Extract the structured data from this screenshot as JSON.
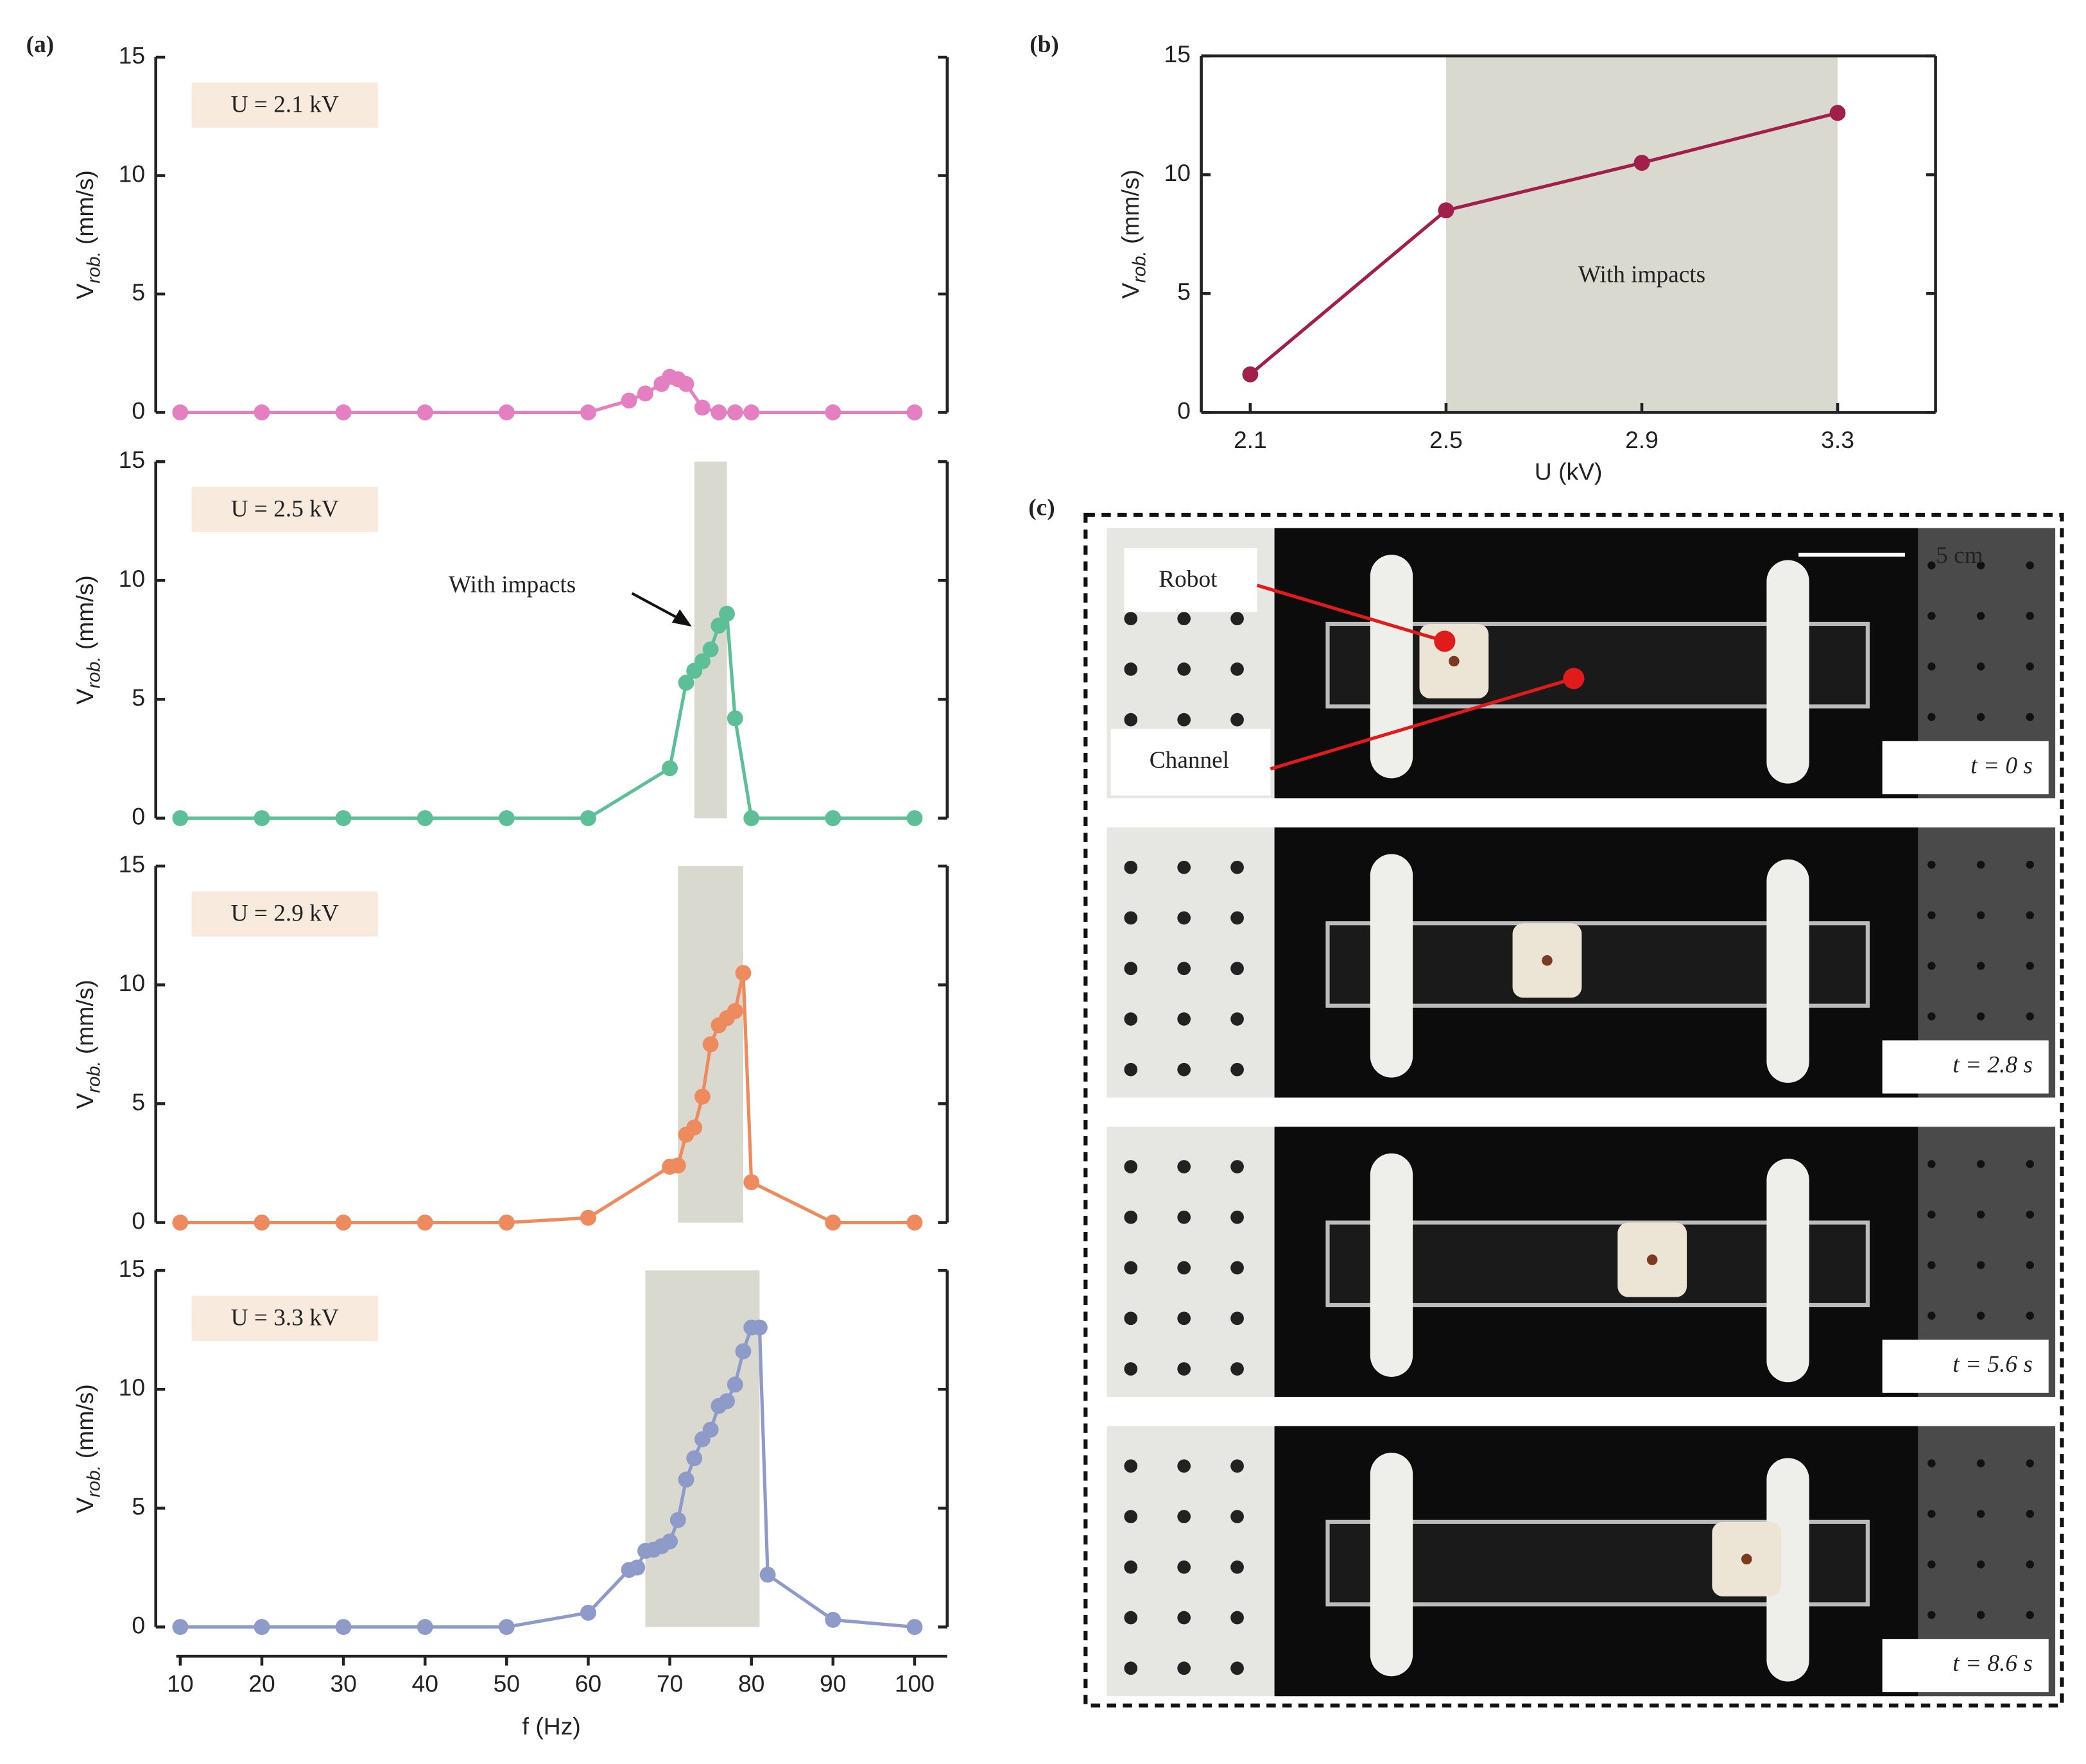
{
  "chart_data": [
    {
      "type": "line",
      "panel_label": "(a)",
      "annotation": "U = 2.1 kV",
      "ylabel": [
        "V",
        "rob.",
        "(mm/s)"
      ],
      "color": "#e47fc1",
      "x": [
        10,
        20,
        30,
        40,
        50,
        60,
        65,
        67,
        69,
        70,
        71,
        72,
        74,
        76,
        78,
        80,
        90,
        100
      ],
      "values": [
        0,
        0,
        0,
        0,
        0,
        0,
        0.5,
        0.8,
        1.2,
        1.5,
        1.4,
        1.2,
        0.2,
        0,
        0,
        0,
        0,
        0
      ],
      "xlim": [
        7,
        104
      ],
      "ylim": [
        0,
        15
      ],
      "yticks": [
        0,
        5,
        10,
        15
      ]
    },
    {
      "type": "line",
      "annotation": "U = 2.5 kV",
      "impact_label": "With impacts",
      "ylabel": [
        "V",
        "rob.",
        "(mm/s)"
      ],
      "color": "#5dbf98",
      "x": [
        10,
        20,
        30,
        40,
        50,
        60,
        70,
        72,
        73,
        74,
        75,
        76,
        77,
        78,
        80,
        90,
        100
      ],
      "values": [
        0,
        0,
        0,
        0,
        0,
        0,
        2.1,
        5.7,
        6.2,
        6.6,
        7.1,
        8.1,
        8.6,
        4.2,
        0,
        0,
        0
      ],
      "shaded_x": [
        73,
        77
      ],
      "xlim": [
        7,
        104
      ],
      "ylim": [
        0,
        15
      ],
      "yticks": [
        0,
        5,
        10,
        15
      ]
    },
    {
      "type": "line",
      "annotation": "U = 2.9 kV",
      "ylabel": [
        "V",
        "rob.",
        "(mm/s)"
      ],
      "color": "#ee8b5e",
      "x": [
        10,
        20,
        30,
        40,
        50,
        60,
        70,
        71,
        72,
        73,
        74,
        75,
        76,
        77,
        78,
        79,
        80,
        90,
        100
      ],
      "values": [
        0,
        0,
        0,
        0,
        0,
        0.2,
        2.35,
        2.4,
        3.7,
        4.0,
        5.3,
        7.5,
        8.3,
        8.6,
        8.9,
        10.5,
        1.7,
        0,
        0
      ],
      "shaded_x": [
        71,
        79
      ],
      "xlim": [
        7,
        104
      ],
      "ylim": [
        0,
        15
      ],
      "yticks": [
        0,
        5,
        10,
        15
      ]
    },
    {
      "type": "line",
      "annotation": "U = 3.3 kV",
      "ylabel": [
        "V",
        "rob.",
        "(mm/s)"
      ],
      "xlabel": "f (Hz)",
      "color": "#8e9bc8",
      "x": [
        10,
        20,
        30,
        40,
        50,
        60,
        65,
        66,
        67,
        68,
        69,
        70,
        71,
        72,
        73,
        74,
        75,
        76,
        77,
        78,
        79,
        80,
        81,
        82,
        90,
        100
      ],
      "values": [
        0,
        0,
        0,
        0,
        0,
        0.6,
        2.4,
        2.5,
        3.2,
        3.25,
        3.4,
        3.6,
        4.5,
        6.2,
        7.1,
        7.9,
        8.3,
        9.3,
        9.5,
        10.2,
        11.6,
        12.6,
        12.6,
        2.2,
        0.3,
        0
      ],
      "shaded_x": [
        67,
        81
      ],
      "xlim": [
        7,
        104
      ],
      "ylim": [
        0,
        15
      ],
      "yticks": [
        0,
        5,
        10,
        15
      ],
      "xticks": [
        10,
        20,
        30,
        40,
        50,
        60,
        70,
        80,
        90,
        100
      ]
    },
    {
      "type": "line",
      "panel_label": "(b)",
      "impact_label": "With impacts",
      "ylabel": [
        "V",
        "rob.",
        "(mm/s)"
      ],
      "xlabel": "U (kV)",
      "color": "#a01f4b",
      "x": [
        2.1,
        2.5,
        2.9,
        3.3
      ],
      "values": [
        1.6,
        8.5,
        10.5,
        12.6
      ],
      "shaded_x": [
        2.5,
        3.3
      ],
      "xlim": [
        2.0,
        3.5
      ],
      "ylim": [
        0,
        15
      ],
      "yticks": [
        0,
        5,
        10,
        15
      ],
      "xticks": [
        2.1,
        2.5,
        2.9,
        3.3
      ],
      "box": true
    }
  ],
  "photos": {
    "panel_label": "(c)",
    "scale": "5 cm",
    "callouts": [
      "Robot",
      "Channel"
    ],
    "frames": [
      "t = 0 s",
      "t = 2.8 s",
      "t = 5.6 s",
      "t = 8.6 s"
    ]
  }
}
